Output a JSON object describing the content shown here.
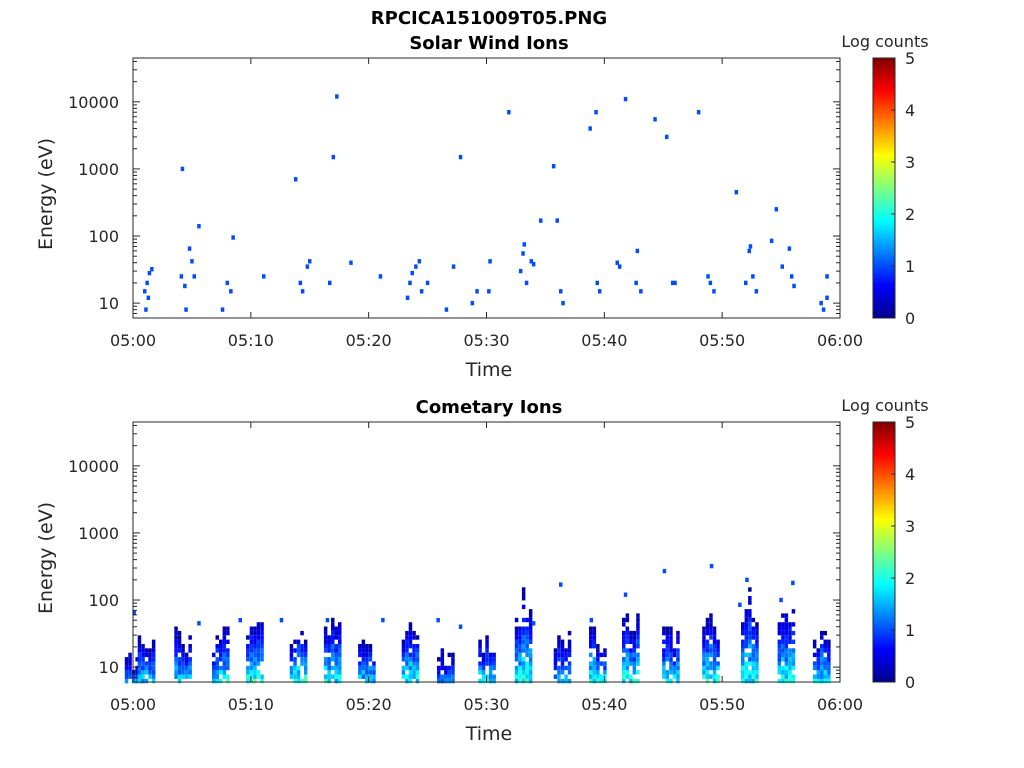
{
  "figure": {
    "title": "RPCICA151009T05.PNG"
  },
  "chart_data": [
    {
      "type": "heatmap",
      "title": "Solar Wind Ions",
      "xlabel": "Time",
      "ylabel": "Energy (eV)",
      "x_tick_labels": [
        "05:00",
        "05:10",
        "05:20",
        "05:30",
        "05:40",
        "05:50",
        "06:00"
      ],
      "x_ticks_min": [
        0,
        10,
        20,
        30,
        40,
        50,
        60
      ],
      "xlim_min": [
        0,
        60
      ],
      "y_tick_labels": [
        "10",
        "100",
        "1000",
        "10000"
      ],
      "y_ticks": [
        10,
        100,
        1000,
        10000
      ],
      "yscale": "log",
      "ylim": [
        6,
        45000
      ],
      "colorbar": {
        "label": "Log counts",
        "range": [
          0,
          5
        ],
        "tick_labels": [
          "0",
          "1",
          "2",
          "3",
          "4",
          "5"
        ]
      },
      "cells": [
        [
          1.0,
          15,
          1
        ],
        [
          1.1,
          8,
          1
        ],
        [
          1.2,
          20,
          1
        ],
        [
          1.4,
          28,
          1
        ],
        [
          1.6,
          32,
          1
        ],
        [
          1.3,
          12,
          1
        ],
        [
          4.1,
          25,
          1
        ],
        [
          4.4,
          18,
          1
        ],
        [
          4.5,
          8,
          1
        ],
        [
          4.8,
          65,
          1
        ],
        [
          5.0,
          42,
          1
        ],
        [
          5.2,
          25,
          1
        ],
        [
          4.2,
          1000,
          1
        ],
        [
          5.6,
          140,
          1
        ],
        [
          8.0,
          20,
          1
        ],
        [
          8.3,
          15,
          1
        ],
        [
          7.6,
          8,
          1
        ],
        [
          8.5,
          95,
          1
        ],
        [
          11.1,
          25,
          1
        ],
        [
          13.8,
          700,
          1
        ],
        [
          14.2,
          20,
          1
        ],
        [
          14.4,
          15,
          1
        ],
        [
          14.8,
          35,
          1
        ],
        [
          15.0,
          42,
          1
        ],
        [
          16.7,
          20,
          1
        ],
        [
          17.0,
          1500,
          1
        ],
        [
          17.3,
          12000,
          1
        ],
        [
          18.5,
          40,
          1
        ],
        [
          21.0,
          25,
          1
        ],
        [
          23.3,
          12,
          1
        ],
        [
          23.5,
          20,
          1
        ],
        [
          23.7,
          28,
          1
        ],
        [
          24.0,
          35,
          1
        ],
        [
          24.3,
          42,
          1
        ],
        [
          24.5,
          15,
          1
        ],
        [
          25.0,
          20,
          1
        ],
        [
          26.6,
          8,
          1
        ],
        [
          27.2,
          35,
          1
        ],
        [
          27.8,
          1500,
          1
        ],
        [
          28.8,
          10,
          1
        ],
        [
          29.2,
          15,
          1
        ],
        [
          30.2,
          15,
          1
        ],
        [
          30.3,
          42,
          1
        ],
        [
          31.9,
          7000,
          1
        ],
        [
          32.9,
          30,
          1
        ],
        [
          33.1,
          55,
          1
        ],
        [
          33.2,
          75,
          1
        ],
        [
          33.4,
          20,
          1
        ],
        [
          33.8,
          42,
          1
        ],
        [
          34.0,
          38,
          1
        ],
        [
          34.6,
          170,
          1
        ],
        [
          35.7,
          1100,
          1
        ],
        [
          36.0,
          170,
          1
        ],
        [
          36.3,
          15,
          1
        ],
        [
          36.5,
          10,
          1
        ],
        [
          38.8,
          4000,
          1
        ],
        [
          39.3,
          7000,
          1
        ],
        [
          39.4,
          20,
          1
        ],
        [
          39.6,
          15,
          1
        ],
        [
          41.1,
          40,
          1
        ],
        [
          41.3,
          35,
          1
        ],
        [
          41.8,
          11000,
          1
        ],
        [
          42.7,
          20,
          1
        ],
        [
          43.1,
          15,
          1
        ],
        [
          42.8,
          60,
          1
        ],
        [
          44.3,
          5500,
          1
        ],
        [
          45.3,
          3000,
          1
        ],
        [
          45.8,
          20,
          1
        ],
        [
          46.0,
          20,
          1
        ],
        [
          48.0,
          7000,
          1
        ],
        [
          48.8,
          25,
          1
        ],
        [
          49.0,
          20,
          1
        ],
        [
          49.3,
          15,
          1
        ],
        [
          51.2,
          450,
          1
        ],
        [
          52.0,
          20,
          1
        ],
        [
          52.3,
          60,
          1
        ],
        [
          52.4,
          70,
          1
        ],
        [
          52.6,
          25,
          1
        ],
        [
          52.9,
          15,
          1
        ],
        [
          54.2,
          85,
          1
        ],
        [
          54.6,
          250,
          1
        ],
        [
          55.1,
          35,
          1
        ],
        [
          55.7,
          65,
          1
        ],
        [
          55.9,
          25,
          1
        ],
        [
          56.1,
          18,
          1
        ],
        [
          58.4,
          10,
          1
        ],
        [
          58.6,
          8,
          1
        ],
        [
          58.9,
          25,
          1
        ],
        [
          58.9,
          12,
          1
        ]
      ]
    },
    {
      "type": "heatmap",
      "title": "Cometary Ions",
      "xlabel": "Time",
      "ylabel": "Energy (eV)",
      "x_tick_labels": [
        "05:00",
        "05:10",
        "05:20",
        "05:30",
        "05:40",
        "05:50",
        "06:00"
      ],
      "x_ticks_min": [
        0,
        10,
        20,
        30,
        40,
        50,
        60
      ],
      "xlim_min": [
        0,
        60
      ],
      "y_tick_labels": [
        "10",
        "100",
        "1000",
        "10000"
      ],
      "y_ticks": [
        10,
        100,
        1000,
        10000
      ],
      "yscale": "log",
      "ylim": [
        6,
        45000
      ],
      "colorbar": {
        "label": "Log counts",
        "range": [
          0,
          5
        ],
        "tick_labels": [
          "0",
          "1",
          "2",
          "3",
          "4",
          "5"
        ]
      },
      "bursts": [
        [
          0.2,
          18,
          1.3
        ],
        [
          1.3,
          40,
          1.9
        ],
        [
          4.4,
          40,
          1.8
        ],
        [
          7.6,
          40,
          2.2
        ],
        [
          10.5,
          80,
          2.2
        ],
        [
          14.2,
          60,
          2.4
        ],
        [
          17.1,
          70,
          2.2
        ],
        [
          20.0,
          40,
          1.9
        ],
        [
          23.7,
          65,
          2.3
        ],
        [
          26.7,
          20,
          1.3
        ],
        [
          30.2,
          35,
          2.0
        ],
        [
          33.3,
          170,
          2.3
        ],
        [
          36.6,
          40,
          1.6
        ],
        [
          39.6,
          45,
          2.2
        ],
        [
          42.4,
          90,
          2.2
        ],
        [
          45.8,
          45,
          2.0
        ],
        [
          49.2,
          70,
          2.2
        ],
        [
          52.5,
          160,
          2.2
        ],
        [
          55.6,
          110,
          2.2
        ],
        [
          58.6,
          40,
          2.1
        ]
      ],
      "cells": [
        [
          0.1,
          65,
          1
        ],
        [
          45.1,
          270,
          1
        ],
        [
          49.1,
          320,
          1
        ],
        [
          36.3,
          170,
          1
        ],
        [
          34.0,
          45,
          1
        ],
        [
          56.0,
          180,
          1
        ],
        [
          52.1,
          200,
          1
        ],
        [
          51.5,
          85,
          1
        ],
        [
          55.0,
          100,
          1
        ],
        [
          41.8,
          120,
          1
        ],
        [
          38.9,
          50,
          1
        ],
        [
          27.8,
          40,
          1
        ],
        [
          25.9,
          50,
          1
        ],
        [
          21.2,
          50,
          1
        ],
        [
          16.5,
          50,
          1
        ],
        [
          12.6,
          50,
          1
        ],
        [
          9.1,
          50,
          1
        ],
        [
          5.6,
          45,
          1
        ]
      ]
    }
  ]
}
